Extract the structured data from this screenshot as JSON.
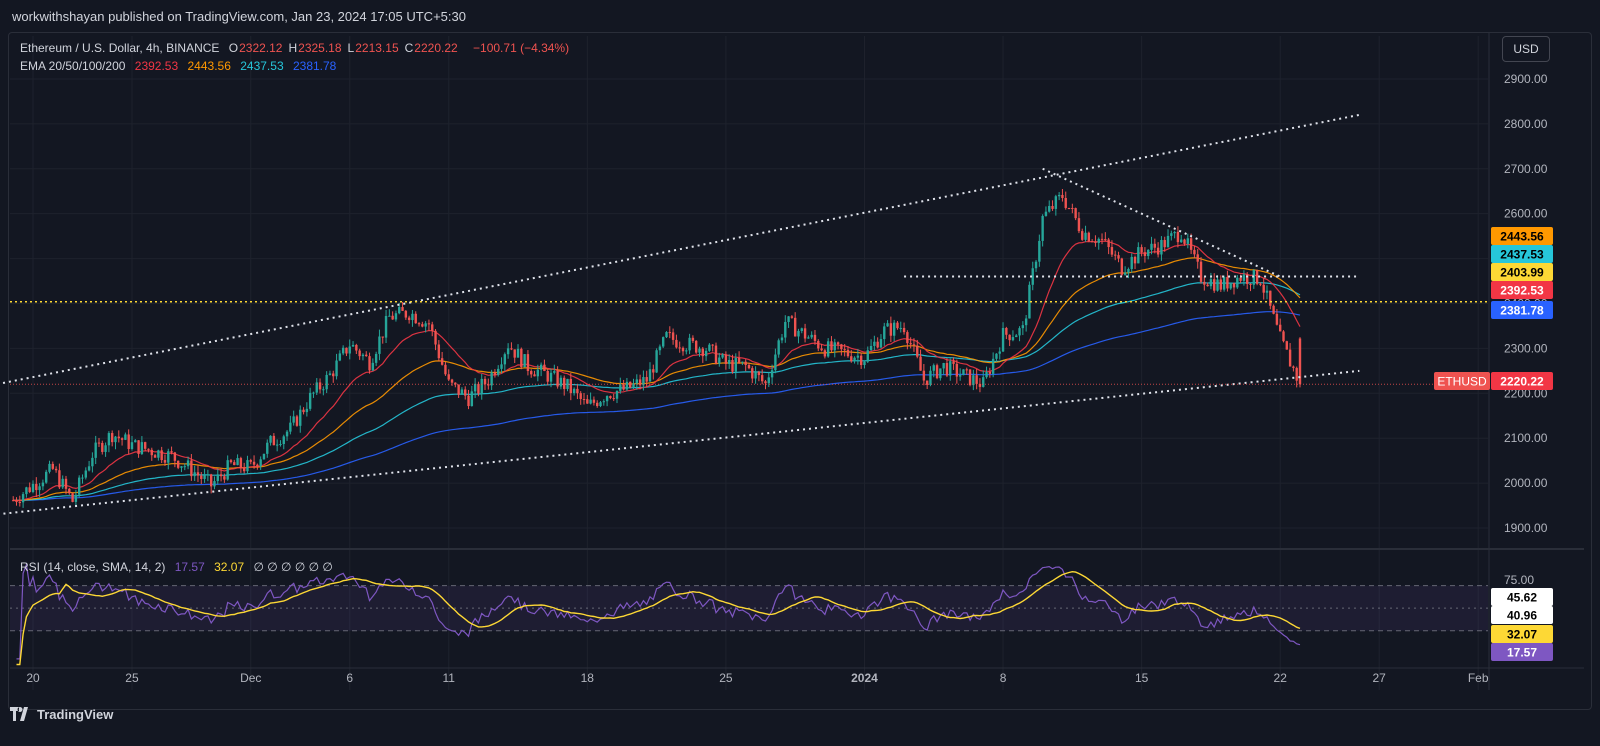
{
  "header": {
    "publisher_line": "workwithshayan published on TradingView.com, Jan 23, 2024 17:05 UTC+5:30"
  },
  "legend": {
    "symbol": "Ethereum / U.S. Dollar, 4h, BINANCE",
    "ohlc": [
      {
        "k": "O",
        "v": "2322.12"
      },
      {
        "k": "H",
        "v": "2325.18"
      },
      {
        "k": "L",
        "v": "2213.15"
      },
      {
        "k": "C",
        "v": "2220.22"
      }
    ],
    "change": "−100.71 (−4.34%)",
    "ema_label": "EMA 20/50/100/200",
    "ema_values": [
      "2392.53",
      "2443.56",
      "2437.53",
      "2381.78"
    ],
    "rsi_label": "RSI (14, close, SMA, 14, 2)",
    "rsi_value": "17.57",
    "rsi_sma_value": "32.07",
    "rsi_extra": "∅ ∅ ∅ ∅ ∅ ∅"
  },
  "currency_button": "USD",
  "brand": "TradingView",
  "colors": {
    "background": "#131722",
    "grid": "#1e222d",
    "up": "#26a69a",
    "down": "#ef5350",
    "ema20": "#f23645",
    "ema50": "#ff9800",
    "ema100": "#26c6da",
    "ema200": "#2962ff",
    "rsi": "#7e57c2",
    "rsi_sma": "#fdd835",
    "support_line": "#fdd835",
    "trendline": "#e0e3eb"
  },
  "chart_data": [
    {
      "type": "candlestick",
      "title": "Ethereum / U.S. Dollar, 4h, BINANCE",
      "x_ticks": [
        "20",
        "25",
        "Dec",
        "6",
        "11",
        "18",
        "25",
        "2024",
        "8",
        "15",
        "22",
        "27",
        "Feb"
      ],
      "y_ticks": [
        "1900.00",
        "2000.00",
        "2100.00",
        "2200.00",
        "2300.00",
        "2400.00",
        "2500.00",
        "2600.00",
        "2700.00",
        "2800.00",
        "2900.00"
      ],
      "ylim": [
        1860,
        2960
      ],
      "close_path": [
        {
          "d": "Nov 19",
          "c": 1962
        },
        {
          "d": "Nov 21",
          "c": 2030
        },
        {
          "d": "Nov 22",
          "c": 1960
        },
        {
          "d": "Nov 23",
          "c": 2065
        },
        {
          "d": "Nov 24",
          "c": 2110
        },
        {
          "d": "Nov 25",
          "c": 2085
        },
        {
          "d": "Nov 27",
          "c": 2060
        },
        {
          "d": "Nov 28",
          "c": 2030
        },
        {
          "d": "Nov 29",
          "c": 1995
        },
        {
          "d": "Nov 30",
          "c": 2040
        },
        {
          "d": "Dec 1",
          "c": 2035
        },
        {
          "d": "Dec 2",
          "c": 2090
        },
        {
          "d": "Dec 3",
          "c": 2120
        },
        {
          "d": "Dec 4",
          "c": 2190
        },
        {
          "d": "Dec 5",
          "c": 2240
        },
        {
          "d": "Dec 6",
          "c": 2310
        },
        {
          "d": "Dec 7",
          "c": 2270
        },
        {
          "d": "Dec 8",
          "c": 2370
        },
        {
          "d": "Dec 9",
          "c": 2380
        },
        {
          "d": "Dec 10",
          "c": 2355
        },
        {
          "d": "Dec 11",
          "c": 2220
        },
        {
          "d": "Dec 12",
          "c": 2190
        },
        {
          "d": "Dec 13",
          "c": 2230
        },
        {
          "d": "Dec 14",
          "c": 2310
        },
        {
          "d": "Dec 15",
          "c": 2260
        },
        {
          "d": "Dec 16",
          "c": 2240
        },
        {
          "d": "Dec 17",
          "c": 2215
        },
        {
          "d": "Dec 18",
          "c": 2170
        },
        {
          "d": "Dec 19",
          "c": 2200
        },
        {
          "d": "Dec 20",
          "c": 2210
        },
        {
          "d": "Dec 21",
          "c": 2230
        },
        {
          "d": "Dec 22",
          "c": 2325
        },
        {
          "d": "Dec 23",
          "c": 2310
        },
        {
          "d": "Dec 24",
          "c": 2300
        },
        {
          "d": "Dec 25",
          "c": 2265
        },
        {
          "d": "Dec 26",
          "c": 2260
        },
        {
          "d": "Dec 27",
          "c": 2220
        },
        {
          "d": "Dec 28",
          "c": 2360
        },
        {
          "d": "Dec 29",
          "c": 2330
        },
        {
          "d": "Dec 30",
          "c": 2300
        },
        {
          "d": "Dec 31",
          "c": 2290
        },
        {
          "d": "Jan 1",
          "c": 2280
        },
        {
          "d": "Jan 2",
          "c": 2340
        },
        {
          "d": "Jan 3",
          "c": 2350
        },
        {
          "d": "Jan 4",
          "c": 2230
        },
        {
          "d": "Jan 5",
          "c": 2260
        },
        {
          "d": "Jan 6",
          "c": 2240
        },
        {
          "d": "Jan 7",
          "c": 2220
        },
        {
          "d": "Jan 8",
          "c": 2330
        },
        {
          "d": "Jan 9",
          "c": 2340
        },
        {
          "d": "Jan 10",
          "c": 2590
        },
        {
          "d": "Jan 11",
          "c": 2640
        },
        {
          "d": "Jan 12",
          "c": 2560
        },
        {
          "d": "Jan 13",
          "c": 2540
        },
        {
          "d": "Jan 14",
          "c": 2480
        },
        {
          "d": "Jan 15",
          "c": 2515
        },
        {
          "d": "Jan 16",
          "c": 2530
        },
        {
          "d": "Jan 17",
          "c": 2560
        },
        {
          "d": "Jan 18",
          "c": 2460
        },
        {
          "d": "Jan 19",
          "c": 2440
        },
        {
          "d": "Jan 20",
          "c": 2460
        },
        {
          "d": "Jan 21",
          "c": 2455
        },
        {
          "d": "Jan 22",
          "c": 2320
        },
        {
          "d": "Jan 23",
          "c": 2220.22
        }
      ],
      "last_bar": {
        "o": 2322.12,
        "h": 2325.18,
        "l": 2213.15,
        "c": 2220.22
      },
      "horizontal_level": 2403.99,
      "price_labels": [
        {
          "text": "2443.56",
          "value": 2443.56,
          "bg": "#ff9800",
          "fg": "#000000"
        },
        {
          "text": "2437.53",
          "value": 2437.53,
          "bg": "#26c6da",
          "fg": "#000000"
        },
        {
          "text": "2403.99",
          "value": 2403.99,
          "bg": "#fdd835",
          "fg": "#000000"
        },
        {
          "text": "2392.53",
          "value": 2392.53,
          "bg": "#f23645",
          "fg": "#ffffff"
        },
        {
          "text": "2381.78",
          "value": 2381.78,
          "bg": "#2962ff",
          "fg": "#ffffff"
        },
        {
          "text": "2220.22",
          "value": 2220.22,
          "bg": "#f23645",
          "fg": "#ffffff"
        }
      ],
      "symbol_tag": "ETHUSD",
      "trendlines": [
        {
          "name": "channel-upper",
          "from": [
            "Nov 17",
            2210
          ],
          "to": [
            "Jan 26",
            2820
          ]
        },
        {
          "name": "channel-lower",
          "from": [
            "Nov 17",
            1925
          ],
          "to": [
            "Jan 26",
            2250
          ]
        },
        {
          "name": "descending-resistance",
          "from": [
            "Jan 10",
            2700
          ],
          "to": [
            "Jan 22",
            2460
          ]
        },
        {
          "name": "range-low",
          "from": [
            "Jan 3",
            2460
          ],
          "to": [
            "Jan 26",
            2460
          ]
        }
      ]
    },
    {
      "type": "line",
      "title": "RSI (14, close, SMA, 14, 2)",
      "y_ticks": [
        "75.00"
      ],
      "ylim": [
        0,
        100
      ],
      "band": [
        30,
        70
      ],
      "rsi_last": 17.57,
      "rsi_sma_last": 32.07,
      "price_labels": [
        {
          "text": "45.62",
          "value": 45.62,
          "bg": "#ffffff",
          "fg": "#000000"
        },
        {
          "text": "40.96",
          "value": 40.96,
          "bg": "#ffffff",
          "fg": "#000000"
        },
        {
          "text": "32.07",
          "value": 32.07,
          "bg": "#fdd835",
          "fg": "#000000"
        },
        {
          "text": "17.57",
          "value": 17.57,
          "bg": "#7e57c2",
          "fg": "#ffffff"
        }
      ]
    }
  ]
}
